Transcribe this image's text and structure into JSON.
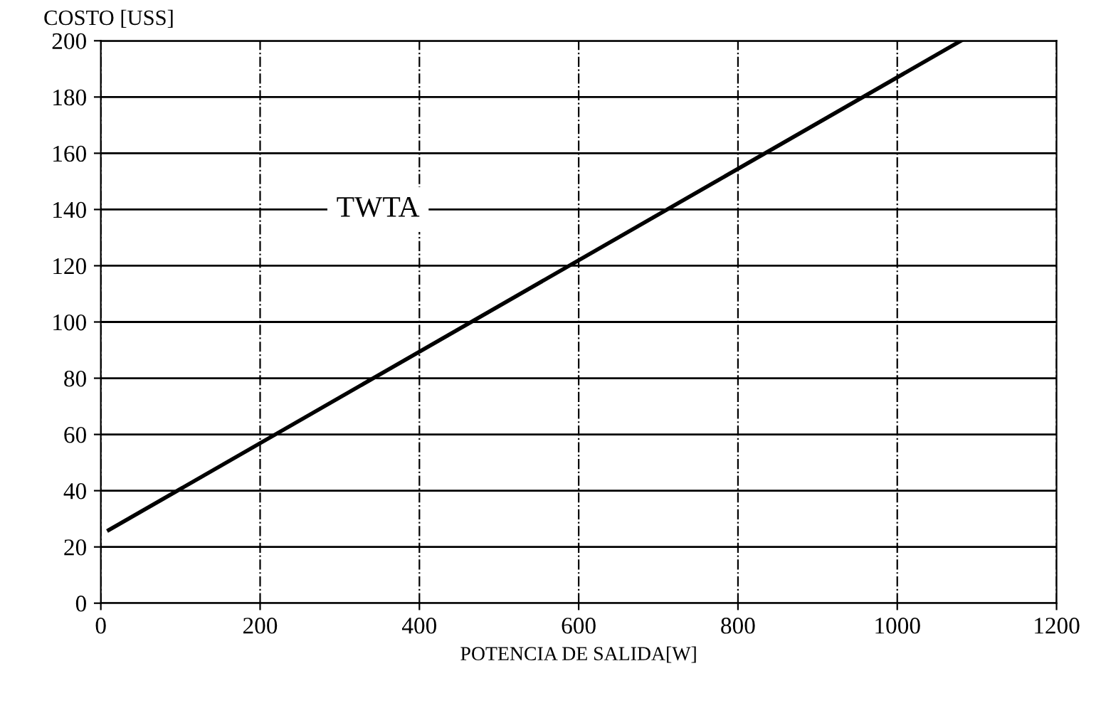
{
  "chart_data": {
    "type": "line",
    "xlabel": "POTENCIA DE SALIDA[W]",
    "ylabel": "COSTO [USS]",
    "series": [
      {
        "name": "TWTA",
        "color": "#000000",
        "x": [
          10,
          1080
        ],
        "values": [
          26,
          200
        ]
      }
    ],
    "xlim": [
      0,
      1200
    ],
    "ylim": [
      0,
      200
    ],
    "xticks": [
      0,
      200,
      400,
      600,
      800,
      1000,
      1200
    ],
    "yticks": [
      0,
      20,
      40,
      60,
      80,
      100,
      120,
      140,
      160,
      180,
      200
    ],
    "grid": true,
    "marker": "none",
    "line_style": "solid",
    "legend": false
  }
}
